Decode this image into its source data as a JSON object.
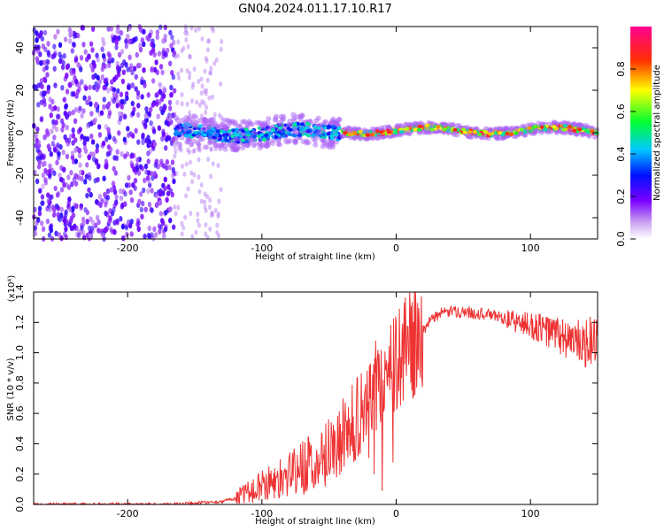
{
  "title": "GN04.2024.011.17.10.R17",
  "chart_data": [
    {
      "type": "heatmap",
      "xlabel": "Height of straight line (km)",
      "ylabel": "Frequency (Hz)",
      "xlim": [
        -270,
        150
      ],
      "ylim": [
        -50,
        50
      ],
      "xticks": [
        -200,
        -100,
        0,
        100
      ],
      "yticks": [
        -40,
        -20,
        0,
        20,
        40
      ],
      "colorbar": {
        "label": "Normalized spectral amplitude",
        "range": [
          0.0,
          1.0
        ],
        "ticks": [
          "0.0",
          "0.2",
          "0.4",
          "0.6",
          "0.8"
        ],
        "colormap": [
          "#ffffff",
          "#8a2be2",
          "#1e00ff",
          "#00c8ff",
          "#00ff50",
          "#ffff00",
          "#ff5000",
          "#ff0080"
        ]
      },
      "regions": [
        {
          "x_range": [
            -270,
            -165
          ],
          "description_level": "scattered low-amplitude noise across full frequency band",
          "amplitude": 0.15
        },
        {
          "x_range": [
            -165,
            -40
          ],
          "center_freq_hz": 0,
          "spread_hz": 6,
          "amplitude": 0.5
        },
        {
          "x_range": [
            -40,
            150
          ],
          "center_freq_hz": 1,
          "spread_hz": 2,
          "amplitude": 0.9
        }
      ]
    },
    {
      "type": "line",
      "xlabel": "Height of straight line (km)",
      "ylabel": "SNR (10 * v/v)",
      "yscale_label": "(x10⁴)",
      "xlim": [
        -270,
        150
      ],
      "ylim": [
        0.0,
        1.4
      ],
      "xticks": [
        -200,
        -100,
        0,
        100
      ],
      "yticks": [
        0.0,
        0.2,
        0.4,
        0.6,
        0.8,
        1.0,
        1.2,
        1.4
      ],
      "color": "#ee3333",
      "series": [
        {
          "x": [
            -270,
            -250,
            -230,
            -200,
            -170,
            -150,
            -130,
            -120,
            -110,
            -100,
            -90,
            -80,
            -70,
            -60,
            -50,
            -40,
            -30,
            -20,
            -10,
            0,
            10,
            20,
            30,
            40,
            50,
            60,
            70,
            80,
            90,
            100,
            110,
            120,
            130,
            140,
            150
          ],
          "y": [
            0.0,
            0.0,
            0.0,
            0.0,
            0.0,
            0.01,
            0.02,
            0.04,
            0.08,
            0.12,
            0.16,
            0.2,
            0.25,
            0.3,
            0.35,
            0.45,
            0.55,
            0.7,
            0.85,
            0.95,
            1.05,
            1.15,
            1.25,
            1.27,
            1.27,
            1.26,
            1.25,
            1.23,
            1.2,
            1.18,
            1.15,
            1.12,
            1.08,
            1.05,
            1.1
          ]
        }
      ]
    }
  ]
}
